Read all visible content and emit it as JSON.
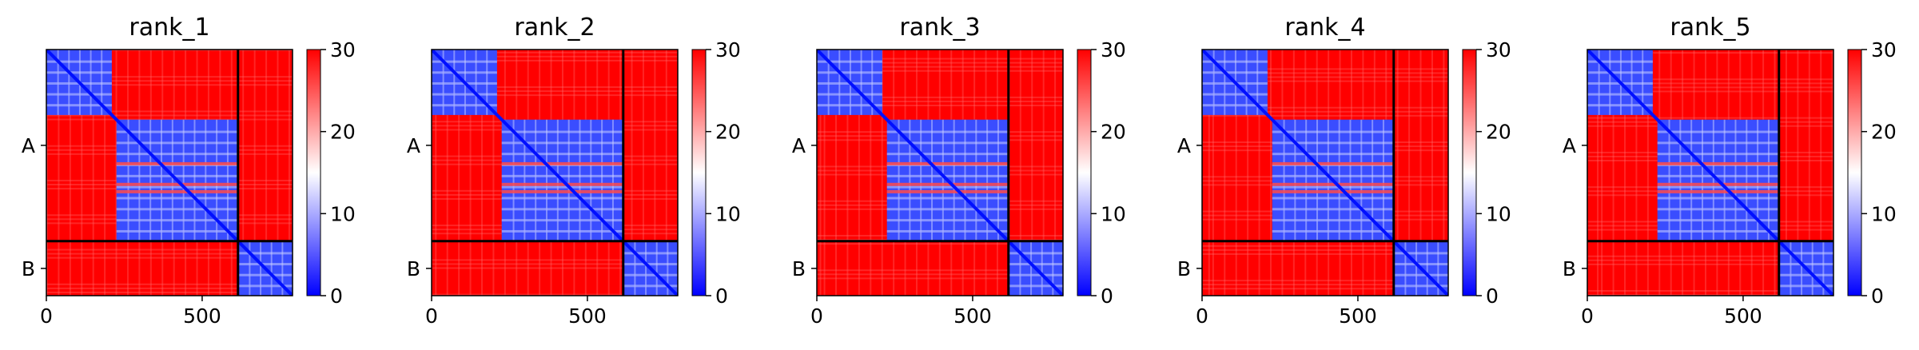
{
  "figure": {
    "colors": {
      "low": "#0000ff",
      "mid": "#ffffff",
      "high": "#ff0000",
      "divider": "#000000"
    }
  },
  "chart_data": [
    {
      "type": "heatmap",
      "title": "rank_1",
      "colormap": "bwr",
      "clim": [
        0,
        30
      ],
      "colorbar_ticks": [
        "0",
        "10",
        "20",
        "30"
      ],
      "x_ticks": [
        0,
        500
      ],
      "x_tick_labels": [
        "0",
        "500"
      ],
      "xlim": [
        0,
        790
      ],
      "ylim": [
        0,
        790
      ],
      "chains": [
        {
          "name": "A",
          "start": 0,
          "end": 615
        },
        {
          "name": "B",
          "start": 615,
          "end": 790
        }
      ],
      "y_tick_labels": [
        "A",
        "B"
      ],
      "low_error_domains": [
        [
          0,
          210
        ],
        [
          225,
          615
        ],
        [
          615,
          790
        ]
      ]
    },
    {
      "type": "heatmap",
      "title": "rank_2",
      "colormap": "bwr",
      "clim": [
        0,
        30
      ],
      "colorbar_ticks": [
        "0",
        "10",
        "20",
        "30"
      ],
      "x_ticks": [
        0,
        500
      ],
      "x_tick_labels": [
        "0",
        "500"
      ],
      "xlim": [
        0,
        790
      ],
      "ylim": [
        0,
        790
      ],
      "chains": [
        {
          "name": "A",
          "start": 0,
          "end": 615
        },
        {
          "name": "B",
          "start": 615,
          "end": 790
        }
      ],
      "y_tick_labels": [
        "A",
        "B"
      ],
      "low_error_domains": [
        [
          0,
          210
        ],
        [
          225,
          615
        ],
        [
          615,
          790
        ]
      ]
    },
    {
      "type": "heatmap",
      "title": "rank_3",
      "colormap": "bwr",
      "clim": [
        0,
        30
      ],
      "colorbar_ticks": [
        "0",
        "10",
        "20",
        "30"
      ],
      "x_ticks": [
        0,
        500
      ],
      "x_tick_labels": [
        "0",
        "500"
      ],
      "xlim": [
        0,
        790
      ],
      "ylim": [
        0,
        790
      ],
      "chains": [
        {
          "name": "A",
          "start": 0,
          "end": 615
        },
        {
          "name": "B",
          "start": 615,
          "end": 790
        }
      ],
      "y_tick_labels": [
        "A",
        "B"
      ],
      "low_error_domains": [
        [
          0,
          210
        ],
        [
          225,
          615
        ],
        [
          615,
          790
        ]
      ]
    },
    {
      "type": "heatmap",
      "title": "rank_4",
      "colormap": "bwr",
      "clim": [
        0,
        30
      ],
      "colorbar_ticks": [
        "0",
        "10",
        "20",
        "30"
      ],
      "x_ticks": [
        0,
        500
      ],
      "x_tick_labels": [
        "0",
        "500"
      ],
      "xlim": [
        0,
        790
      ],
      "ylim": [
        0,
        790
      ],
      "chains": [
        {
          "name": "A",
          "start": 0,
          "end": 615
        },
        {
          "name": "B",
          "start": 615,
          "end": 790
        }
      ],
      "y_tick_labels": [
        "A",
        "B"
      ],
      "low_error_domains": [
        [
          0,
          210
        ],
        [
          225,
          615
        ],
        [
          615,
          790
        ]
      ]
    },
    {
      "type": "heatmap",
      "title": "rank_5",
      "colormap": "bwr",
      "clim": [
        0,
        30
      ],
      "colorbar_ticks": [
        "0",
        "10",
        "20",
        "30"
      ],
      "x_ticks": [
        0,
        500
      ],
      "x_tick_labels": [
        "0",
        "500"
      ],
      "xlim": [
        0,
        790
      ],
      "ylim": [
        0,
        790
      ],
      "chains": [
        {
          "name": "A",
          "start": 0,
          "end": 615
        },
        {
          "name": "B",
          "start": 615,
          "end": 790
        }
      ],
      "y_tick_labels": [
        "A",
        "B"
      ],
      "low_error_domains": [
        [
          0,
          210
        ],
        [
          225,
          615
        ],
        [
          615,
          790
        ]
      ]
    }
  ]
}
